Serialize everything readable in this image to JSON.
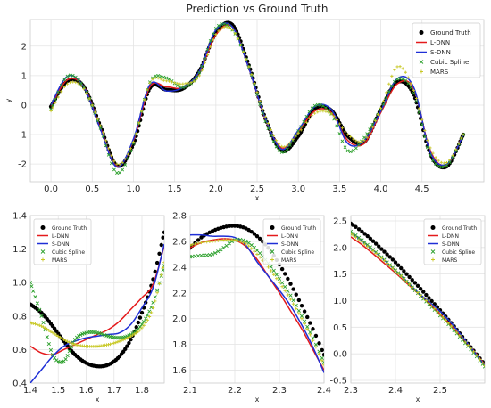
{
  "figure": {
    "title": "Prediction vs Ground Truth",
    "legend_labels": [
      "Ground Truth",
      "L-DNN",
      "S-DNN",
      "Cubic Spline",
      "MARS"
    ],
    "colors": {
      "ground_truth": "#000000",
      "l_dnn": "#e41a1c",
      "s_dnn": "#1f2fd6",
      "cubic_spline": "#2ca02c",
      "mars": "#c8c826",
      "grid": "#e4e4e4",
      "frame": "#cccccc"
    }
  },
  "chart_data": [
    {
      "type": "line",
      "title": "Prediction vs Ground Truth",
      "xlabel": "x",
      "ylabel": "y",
      "xlim": [
        -0.25,
        5.25
      ],
      "ylim": [
        -2.6,
        2.9
      ],
      "xticks": [
        "0.0",
        "0.5",
        "1.0",
        "1.5",
        "2.0",
        "2.5",
        "3.0",
        "3.5",
        "4.0",
        "4.5"
      ],
      "yticks": [
        "-2",
        "-1",
        "0",
        "1",
        "2"
      ],
      "grid": true,
      "legend": "top-right",
      "x": [
        0.0,
        0.2,
        0.4,
        0.6,
        0.8,
        1.0,
        1.2,
        1.4,
        1.6,
        1.8,
        2.0,
        2.2,
        2.4,
        2.6,
        2.8,
        3.0,
        3.2,
        3.4,
        3.6,
        3.8,
        4.0,
        4.2,
        4.4,
        4.6,
        4.8,
        5.0
      ],
      "series": [
        {
          "name": "Ground Truth",
          "values": [
            -0.05,
            0.82,
            0.62,
            -0.72,
            -2.05,
            -1.32,
            0.58,
            0.52,
            0.56,
            1.15,
            2.45,
            2.72,
            1.35,
            -0.45,
            -1.55,
            -1.05,
            -0.12,
            -0.18,
            -1.05,
            -1.25,
            -0.15,
            0.78,
            0.35,
            -1.65,
            -2.08,
            -1.0
          ]
        },
        {
          "name": "L-DNN",
          "values": [
            -0.02,
            0.86,
            0.62,
            -0.78,
            -2.08,
            -1.2,
            0.62,
            0.62,
            0.6,
            1.12,
            2.38,
            2.65,
            1.25,
            -0.48,
            -1.45,
            -0.9,
            -0.2,
            -0.25,
            -1.2,
            -1.3,
            -0.25,
            0.72,
            0.55,
            -1.55,
            -2.02,
            -0.98
          ]
        },
        {
          "name": "S-DNN",
          "values": [
            0.0,
            0.98,
            0.6,
            -0.82,
            -2.1,
            -1.15,
            0.7,
            0.48,
            0.6,
            1.15,
            2.55,
            2.65,
            1.25,
            -0.45,
            -1.5,
            -0.85,
            -0.05,
            -0.15,
            -1.3,
            -1.2,
            -0.2,
            0.9,
            0.6,
            -1.6,
            -2.0,
            -1.02
          ]
        },
        {
          "name": "Cubic Spline",
          "values": [
            -0.15,
            0.98,
            0.6,
            -0.78,
            -2.3,
            -1.3,
            0.78,
            0.92,
            0.6,
            1.1,
            2.6,
            2.55,
            1.3,
            -0.55,
            -1.6,
            -0.88,
            -0.02,
            -0.3,
            -1.55,
            -1.1,
            -0.15,
            0.88,
            0.4,
            -1.7,
            -2.05,
            -1.0
          ]
        },
        {
          "name": "MARS",
          "values": [
            -0.2,
            0.72,
            0.55,
            -0.7,
            -2.0,
            -1.25,
            0.75,
            0.82,
            0.72,
            1.0,
            2.4,
            2.55,
            1.3,
            -0.4,
            -1.4,
            -0.95,
            -0.28,
            -0.3,
            -1.0,
            -1.2,
            -0.1,
            1.3,
            0.5,
            -1.45,
            -1.95,
            -1.0
          ]
        }
      ]
    },
    {
      "type": "line",
      "title": "",
      "xlabel": "x",
      "ylabel": "",
      "xlim": [
        1.4,
        1.88
      ],
      "ylim": [
        0.4,
        1.4
      ],
      "xticks": [
        "1.4",
        "1.5",
        "1.6",
        "1.7",
        "1.8"
      ],
      "yticks": [
        "0.4",
        "0.6",
        "0.8",
        "1.0",
        "1.2",
        "1.4"
      ],
      "grid": true,
      "legend": "top-left",
      "x": [
        1.4,
        1.44,
        1.48,
        1.52,
        1.56,
        1.6,
        1.64,
        1.68,
        1.72,
        1.76,
        1.8,
        1.84,
        1.88
      ],
      "series": [
        {
          "name": "Ground Truth",
          "values": [
            0.87,
            0.82,
            0.74,
            0.65,
            0.57,
            0.52,
            0.5,
            0.51,
            0.56,
            0.66,
            0.82,
            1.02,
            1.3
          ]
        },
        {
          "name": "L-DNN",
          "values": [
            0.62,
            0.58,
            0.57,
            0.6,
            0.63,
            0.66,
            0.69,
            0.72,
            0.77,
            0.84,
            0.91,
            0.99,
            1.22
          ]
        },
        {
          "name": "S-DNN",
          "values": [
            0.4,
            0.48,
            0.56,
            0.62,
            0.65,
            0.67,
            0.68,
            0.69,
            0.7,
            0.75,
            0.85,
            0.97,
            1.23
          ]
        },
        {
          "name": "Cubic Spline",
          "values": [
            1.0,
            0.8,
            0.57,
            0.53,
            0.66,
            0.7,
            0.7,
            0.68,
            0.67,
            0.69,
            0.75,
            0.88,
            1.1
          ]
        },
        {
          "name": "MARS",
          "values": [
            0.76,
            0.74,
            0.7,
            0.66,
            0.63,
            0.62,
            0.62,
            0.63,
            0.65,
            0.68,
            0.73,
            0.85,
            1.12
          ]
        }
      ]
    },
    {
      "type": "line",
      "title": "",
      "xlabel": "x",
      "ylabel": "",
      "xlim": [
        2.1,
        2.4
      ],
      "ylim": [
        1.5,
        2.8
      ],
      "xticks": [
        "2.1",
        "2.2",
        "2.3",
        "2.4"
      ],
      "yticks": [
        "1.6",
        "1.8",
        "2.0",
        "2.2",
        "2.4",
        "2.6",
        "2.8"
      ],
      "grid": true,
      "legend": "top-right",
      "x": [
        2.1,
        2.125,
        2.15,
        2.175,
        2.2,
        2.225,
        2.25,
        2.275,
        2.3,
        2.325,
        2.35,
        2.375,
        2.4
      ],
      "series": [
        {
          "name": "Ground Truth",
          "values": [
            2.55,
            2.63,
            2.68,
            2.71,
            2.72,
            2.7,
            2.64,
            2.55,
            2.42,
            2.27,
            2.1,
            1.92,
            1.72
          ]
        },
        {
          "name": "L-DNN",
          "values": [
            2.55,
            2.59,
            2.61,
            2.62,
            2.61,
            2.56,
            2.46,
            2.33,
            2.2,
            2.06,
            1.92,
            1.76,
            1.6
          ]
        },
        {
          "name": "S-DNN",
          "values": [
            2.65,
            2.65,
            2.64,
            2.64,
            2.63,
            2.57,
            2.44,
            2.33,
            2.22,
            2.1,
            1.95,
            1.78,
            1.58
          ]
        },
        {
          "name": "Cubic Spline",
          "values": [
            2.48,
            2.49,
            2.5,
            2.55,
            2.61,
            2.6,
            2.53,
            2.43,
            2.31,
            2.18,
            2.02,
            1.85,
            1.66
          ]
        },
        {
          "name": "MARS",
          "values": [
            2.57,
            2.59,
            2.6,
            2.61,
            2.61,
            2.58,
            2.5,
            2.4,
            2.28,
            2.15,
            2.0,
            1.83,
            1.64
          ]
        }
      ]
    },
    {
      "type": "line",
      "title": "",
      "xlabel": "x",
      "ylabel": "",
      "xlim": [
        2.3,
        2.6
      ],
      "ylim": [
        -0.55,
        2.6
      ],
      "xticks": [
        "2.3",
        "2.4",
        "2.5",
        "2."
      ],
      "yticks": [
        "-0.5",
        "0.0",
        "0.5",
        "1.0",
        "1.5",
        "2.0",
        "2.5"
      ],
      "grid": true,
      "legend": "top-right",
      "x": [
        2.3,
        2.325,
        2.35,
        2.375,
        2.4,
        2.425,
        2.45,
        2.475,
        2.5,
        2.525,
        2.55,
        2.575,
        2.6
      ],
      "series": [
        {
          "name": "Ground Truth",
          "values": [
            2.45,
            2.3,
            2.12,
            1.92,
            1.72,
            1.5,
            1.28,
            1.05,
            0.82,
            0.58,
            0.32,
            0.06,
            -0.2
          ]
        },
        {
          "name": "L-DNN",
          "values": [
            2.2,
            2.05,
            1.88,
            1.7,
            1.52,
            1.33,
            1.14,
            0.95,
            0.75,
            0.53,
            0.3,
            0.06,
            -0.2
          ]
        },
        {
          "name": "S-DNN",
          "values": [
            2.28,
            2.12,
            1.95,
            1.76,
            1.57,
            1.37,
            1.16,
            0.98,
            0.8,
            0.58,
            0.32,
            0.05,
            -0.22
          ]
        },
        {
          "name": "Cubic Spline",
          "values": [
            2.3,
            2.14,
            1.96,
            1.77,
            1.57,
            1.36,
            1.14,
            0.93,
            0.72,
            0.5,
            0.26,
            0.02,
            -0.24
          ]
        },
        {
          "name": "MARS",
          "values": [
            2.26,
            2.1,
            1.93,
            1.75,
            1.56,
            1.36,
            1.15,
            0.95,
            0.74,
            0.52,
            0.28,
            0.04,
            -0.22
          ]
        }
      ]
    }
  ]
}
